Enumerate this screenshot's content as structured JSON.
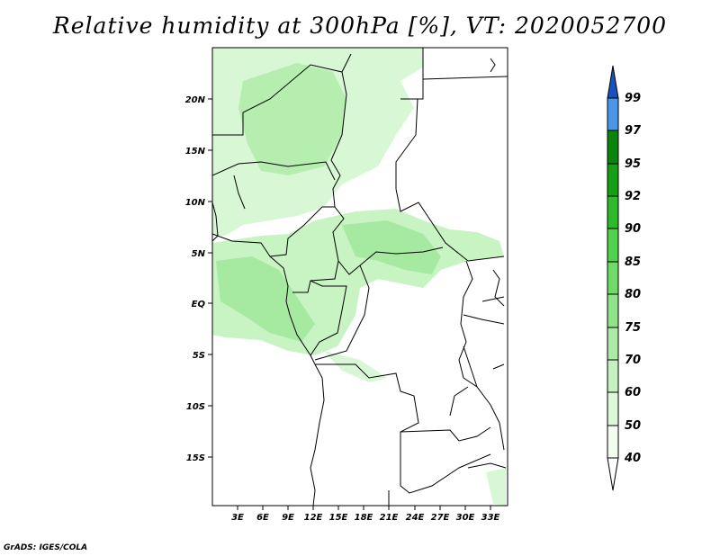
{
  "title": "Relative humidity at 300hPa [%], VT: 2020052700",
  "credit": "GrADS: IGES/COLA",
  "lat_labels": [
    "20N",
    "15N",
    "10N",
    "5N",
    "EQ",
    "5S",
    "10S",
    "15S"
  ],
  "lon_labels": [
    "3E",
    "6E",
    "9E",
    "12E",
    "15E",
    "18E",
    "21E",
    "24E",
    "27E",
    "30E",
    "33E"
  ],
  "colorbar": {
    "labels": [
      "40",
      "50",
      "60",
      "70",
      "75",
      "80",
      "85",
      "90",
      "92",
      "95",
      "97",
      "99"
    ],
    "colors": [
      "#f2fdf0",
      "#dcf8d8",
      "#c4f1bf",
      "#aceba6",
      "#8fe489",
      "#6fdc69",
      "#50d24c",
      "#2dbb2a",
      "#169e15",
      "#0b840b",
      "#4a97ea",
      "#2a78de",
      "#1652c0",
      "#ffffff"
    ]
  }
}
